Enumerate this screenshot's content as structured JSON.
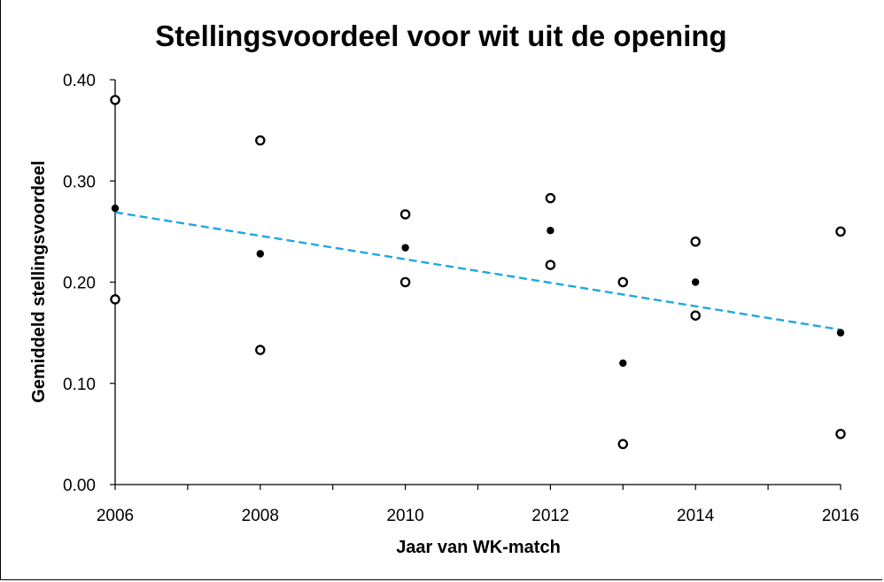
{
  "chart_data": {
    "type": "scatter",
    "title": "Stellingsvoordeel voor wit uit de opening",
    "xlabel": "Jaar van WK-match",
    "ylabel": "Gemiddeld stellingsvoordeel",
    "xlim": [
      2006,
      2016
    ],
    "ylim": [
      0.0,
      0.4
    ],
    "x_ticks": [
      "2006",
      "2008",
      "2010",
      "2012",
      "2014",
      "2016"
    ],
    "x_minor_ticks": [
      2007,
      2009,
      2011,
      2013,
      2015
    ],
    "y_ticks": [
      "0.00",
      "0.10",
      "0.20",
      "0.30",
      "0.40"
    ],
    "grid": false,
    "series": [
      {
        "marker": "open-circle",
        "color": "#000000",
        "points": [
          {
            "x": 2006,
            "y": 0.38
          },
          {
            "x": 2006,
            "y": 0.183
          },
          {
            "x": 2008,
            "y": 0.34
          },
          {
            "x": 2008,
            "y": 0.133
          },
          {
            "x": 2010,
            "y": 0.267
          },
          {
            "x": 2010,
            "y": 0.2
          },
          {
            "x": 2012,
            "y": 0.283
          },
          {
            "x": 2012,
            "y": 0.217
          },
          {
            "x": 2013,
            "y": 0.2
          },
          {
            "x": 2013,
            "y": 0.04
          },
          {
            "x": 2014,
            "y": 0.24
          },
          {
            "x": 2014,
            "y": 0.167
          },
          {
            "x": 2016,
            "y": 0.25
          },
          {
            "x": 2016,
            "y": 0.05
          }
        ]
      },
      {
        "marker": "filled-circle",
        "color": "#000000",
        "points": [
          {
            "x": 2006,
            "y": 0.273
          },
          {
            "x": 2008,
            "y": 0.228
          },
          {
            "x": 2010,
            "y": 0.234
          },
          {
            "x": 2012,
            "y": 0.251
          },
          {
            "x": 2013,
            "y": 0.12
          },
          {
            "x": 2014,
            "y": 0.2
          },
          {
            "x": 2016,
            "y": 0.15
          }
        ]
      }
    ],
    "trendline": {
      "style": "dashed",
      "color": "#1fa7e0",
      "points": [
        {
          "x": 2006,
          "y": 0.269
        },
        {
          "x": 2016,
          "y": 0.153
        }
      ]
    }
  }
}
